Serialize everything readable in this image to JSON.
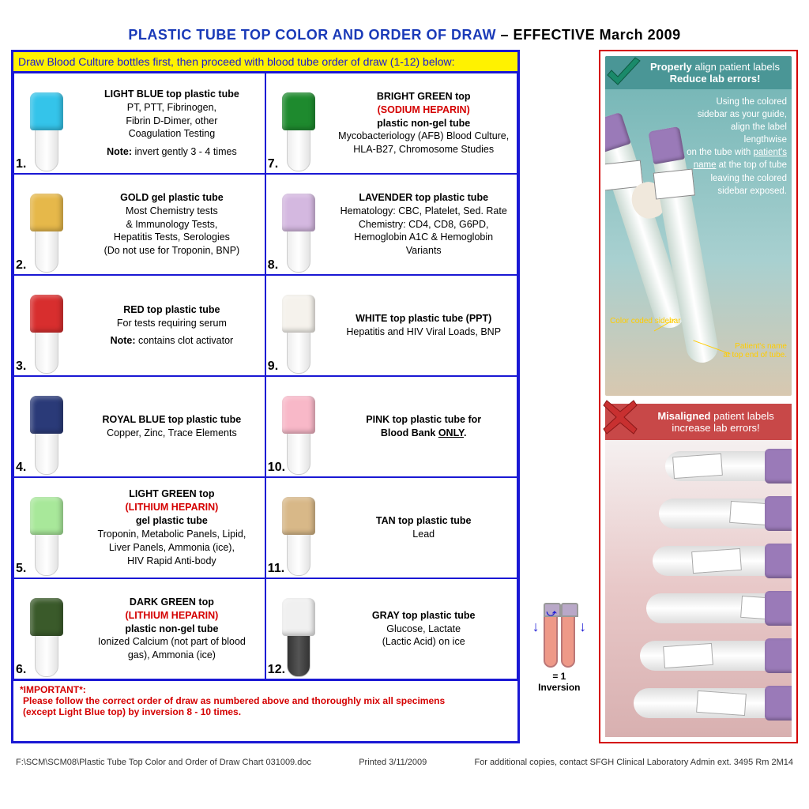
{
  "title_blue": "PLASTIC TUBE TOP COLOR AND ORDER OF DRAW",
  "title_black": " – EFFECTIVE March 2009",
  "yellow_instruction": "Draw Blood Culture bottles first, then proceed with blood tube order of draw (1-12) below:",
  "tubes": [
    {
      "n": "1.",
      "cap": "#34c4ea",
      "title": "LIGHT BLUE top plastic tube",
      "sub": "",
      "lines": "PT, PTT, Fibrinogen,<br>Fibrin D-Dimer, other<br>Coagulation Testing",
      "note": "<b>Note:</b> invert gently 3 - 4 times"
    },
    {
      "n": "7.",
      "cap": "#1e8a2e",
      "title": "BRIGHT GREEN top",
      "sub": "(SODIUM HEPARIN)",
      "extra": "<b>plastic non-gel tube</b>",
      "lines": "Mycobacteriology (AFB) Blood Culture,<br>HLA-B27, Chromosome Studies",
      "note": ""
    },
    {
      "n": "2.",
      "cap": "#e6b84a",
      "title": "GOLD gel plastic tube",
      "sub": "",
      "lines": "Most Chemistry tests<br>& Immunology Tests,<br>Hepatitis Tests, Serologies<br>(Do not use for Troponin, BNP)",
      "note": ""
    },
    {
      "n": "8.",
      "cap": "#d4b8e0",
      "title": "LAVENDER top plastic tube",
      "sub": "",
      "lines": "Hematology: CBC, Platelet, Sed. Rate<br>Chemistry:  CD4, CD8, G6PD,<br>Hemoglobin A1C & Hemoglobin<br>Variants",
      "note": ""
    },
    {
      "n": "3.",
      "cap": "#d82e2e",
      "title": "RED top plastic tube",
      "sub": "",
      "lines": "For tests requiring serum",
      "note": "<b>Note:</b> contains clot activator"
    },
    {
      "n": "9.",
      "cap": "#f5f2ec",
      "title": "WHITE top plastic tube (PPT)",
      "sub": "",
      "lines": "Hepatitis and HIV Viral Loads, BNP",
      "note": ""
    },
    {
      "n": "4.",
      "cap": "#2a3a78",
      "title": "ROYAL BLUE top plastic tube",
      "sub": "",
      "lines": "Copper, Zinc, Trace Elements",
      "note": ""
    },
    {
      "n": "10.",
      "cap": "#f8b8c8",
      "title": "PINK top plastic tube for<br>Blood Bank <u>ONLY</u>.",
      "sub": "",
      "lines": "",
      "note": ""
    },
    {
      "n": "5.",
      "cap": "#a8e89a",
      "title": "LIGHT GREEN top",
      "sub": "(LITHIUM HEPARIN)",
      "extra": "<b>gel plastic tube</b>",
      "lines": "Troponin, Metabolic Panels, Lipid,<br>Liver Panels, Ammonia (ice),<br>HIV Rapid Anti-body",
      "note": ""
    },
    {
      "n": "11.",
      "cap": "#d8b888",
      "title": "TAN top plastic tube",
      "sub": "",
      "lines": "Lead",
      "note": ""
    },
    {
      "n": "6.",
      "cap": "#3a5a2a",
      "title": "DARK GREEN top",
      "sub": "(LITHIUM HEPARIN)",
      "extra": "<b>plastic non-gel tube</b>",
      "lines": "Ionized Calcium (not part of blood<br>gas), Ammonia (ice)",
      "note": ""
    },
    {
      "n": "12.",
      "cap": "#f0f0f0",
      "title": "GRAY top plastic tube",
      "sub": "",
      "lines": "Glucose, Lactate<br>(Lactic Acid) on ice",
      "note": "",
      "dark_body": true
    }
  ],
  "important_label": "*IMPORTANT*:",
  "important_text": "Please follow the correct order of draw as numbered above and thoroughly mix all specimens<br>(except Light Blue top) by inversion 8 - 10 times.",
  "inversion_label": "= 1 Inversion",
  "proper_header": "<b>Properly</b> align patient labels<br><b>Reduce lab errors!</b>",
  "proper_text": "Using the colored sidebar as your guide, align the label lengthwise<br>on the tube with <u>patient's name</u> at the top of tube leaving the colored sidebar exposed.",
  "callout1": "Color coded sidebar",
  "callout2": "Patient's name<br>at top end of tube.",
  "mis_header": "<b>Misaligned</b> patient labels<br>increase lab errors!",
  "footer_left": "F:\\SCM\\SCM08\\Plastic Tube Top Color and Order of Draw Chart 031009.doc",
  "footer_mid": "Printed 3/11/2009",
  "footer_right": "For additional copies, contact SFGH Clinical Laboratory Admin ext. 3495     Rm 2M14"
}
